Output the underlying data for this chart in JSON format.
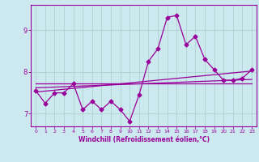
{
  "xlabel": "Windchill (Refroidissement éolien,°C)",
  "background_color": "#cce9f0",
  "line_color": "#990099",
  "grid_color": "#aacccc",
  "xlim": [
    -0.5,
    23.5
  ],
  "ylim": [
    6.7,
    9.6
  ],
  "yticks": [
    7,
    8,
    9
  ],
  "xticks": [
    0,
    1,
    2,
    3,
    4,
    5,
    6,
    7,
    8,
    9,
    10,
    11,
    12,
    13,
    14,
    15,
    16,
    17,
    18,
    19,
    20,
    21,
    22,
    23
  ],
  "data_x": [
    0,
    1,
    2,
    3,
    4,
    5,
    6,
    7,
    8,
    9,
    10,
    11,
    12,
    13,
    14,
    15,
    16,
    17,
    18,
    19,
    20,
    21,
    22,
    23
  ],
  "data_y": [
    7.55,
    7.25,
    7.5,
    7.5,
    7.72,
    7.1,
    7.3,
    7.1,
    7.3,
    7.1,
    6.82,
    7.45,
    8.25,
    8.55,
    9.3,
    9.35,
    8.65,
    8.85,
    8.3,
    8.05,
    7.8,
    7.8,
    7.85,
    8.05
  ],
  "reg_line1_x": [
    0,
    23
  ],
  "reg_line1_y": [
    7.52,
    8.02
  ],
  "reg_line2_x": [
    0,
    23
  ],
  "reg_line2_y": [
    7.62,
    7.82
  ],
  "reg_line3_x": [
    0,
    23
  ],
  "reg_line3_y": [
    7.72,
    7.72
  ]
}
